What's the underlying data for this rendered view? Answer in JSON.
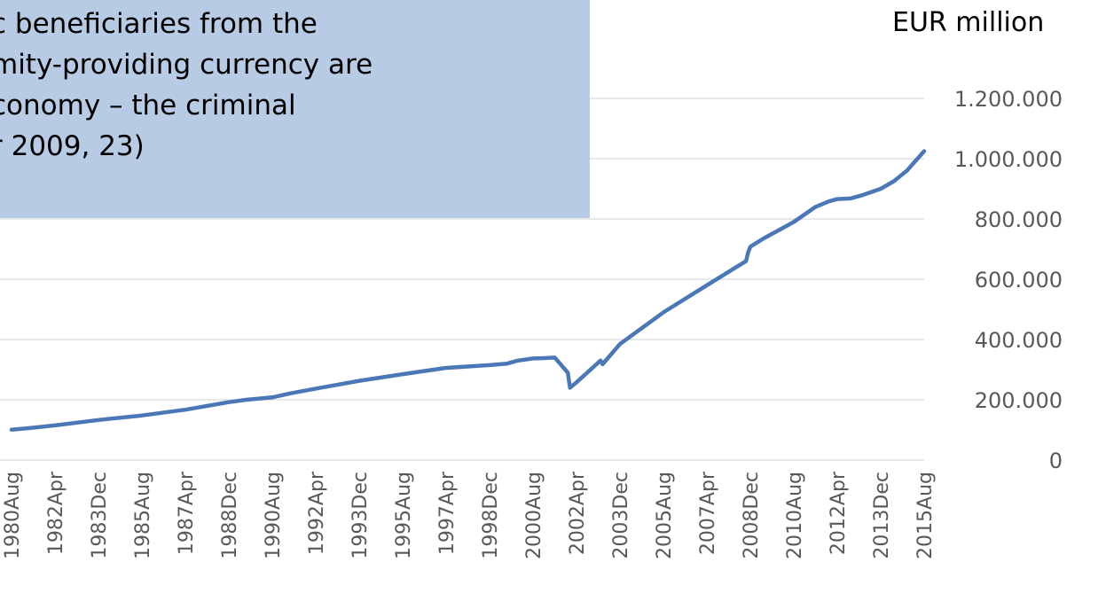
{
  "unit_label": "EUR million",
  "quote": {
    "lines": [
      "c beneficiaries from the",
      "mity-providing currency are",
      "conomy – the criminal",
      "r 2009, 23)"
    ]
  },
  "colors": {
    "line": "#4a78b6",
    "gridline": "#d9d9d9",
    "quote_box": "#b7cbe4",
    "tick_text": "#595959"
  },
  "chart_data": {
    "type": "line",
    "title": "",
    "xlabel": "",
    "ylabel": "EUR million",
    "ylim": [
      0,
      1200000
    ],
    "yticks": [
      0,
      200000,
      400000,
      600000,
      800000,
      1000000,
      1200000
    ],
    "ytick_labels": [
      "0",
      "200.000",
      "400.000",
      "600.000",
      "800.000",
      "1.000.000",
      "1.200.000"
    ],
    "xtick_labels": [
      "1980Aug",
      "1982Apr",
      "1983Dec",
      "1985Aug",
      "1987Apr",
      "1988Dec",
      "1990Aug",
      "1992Apr",
      "1993Dec",
      "1995Aug",
      "1997Apr",
      "1998Dec",
      "2000Aug",
      "2002Apr",
      "2003Dec",
      "2005Aug",
      "2007Apr",
      "2008Dec",
      "2010Aug",
      "2012Apr",
      "2013Dec",
      "2015Aug"
    ],
    "grid": true,
    "legend": "none",
    "series": [
      {
        "x": [
          "1980Aug",
          "1981Apr",
          "1982Apr",
          "1983Dec",
          "1985Aug",
          "1987Apr",
          "1988Dec",
          "1989Aug",
          "1990Aug",
          "1991Apr",
          "1992Apr",
          "1993Dec",
          "1995Aug",
          "1997Apr",
          "1998Dec",
          "1999Aug",
          "2000Jan",
          "2000Aug",
          "2000Dec",
          "2001Jun",
          "2001Dec",
          "2002Jan",
          "2002Apr",
          "2002Dec",
          "2003Mar",
          "2003Apr",
          "2003Dec",
          "2005Aug",
          "2007Apr",
          "2008Oct",
          "2008Nov",
          "2008Dec",
          "2009Jun",
          "2010Aug",
          "2011Jun",
          "2011Dec",
          "2012Apr",
          "2012Oct",
          "2013Apr",
          "2013Dec",
          "2014Jun",
          "2014Dec",
          "2015Aug"
        ],
        "values": [
          101000,
          106000,
          115000,
          133000,
          148000,
          167000,
          192000,
          200000,
          208000,
          221000,
          237000,
          263000,
          285000,
          306000,
          315000,
          320000,
          330000,
          337000,
          338000,
          340000,
          290000,
          240000,
          258000,
          310000,
          330000,
          318000,
          385000,
          490000,
          580000,
          660000,
          690000,
          708000,
          735000,
          790000,
          840000,
          858000,
          866000,
          868000,
          880000,
          900000,
          925000,
          960000,
          1025000
        ]
      }
    ]
  }
}
